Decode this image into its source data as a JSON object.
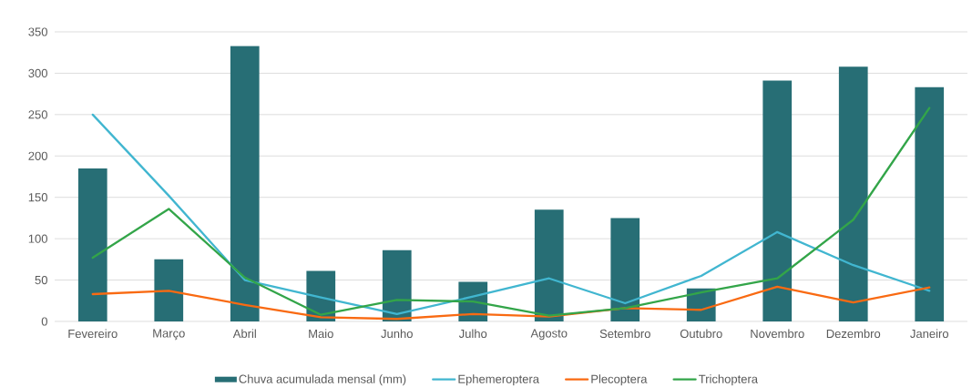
{
  "chart_data": {
    "type": "bar",
    "categories": [
      "Fevereiro",
      "Março",
      "Abril",
      "Maio",
      "Junho",
      "Julho",
      "Agosto",
      "Setembro",
      "Outubro",
      "Novembro",
      "Dezembro",
      "Janeiro"
    ],
    "series": [
      {
        "name": "Chuva acumulada mensal (mm)",
        "color": "#276e75",
        "values": [
          185,
          75,
          333,
          61,
          86,
          48,
          135,
          125,
          40,
          291,
          308,
          283
        ]
      },
      {
        "name": "Ephemeroptera",
        "type": "line",
        "color": "#41b6d0",
        "values": [
          250,
          152,
          50,
          29,
          9,
          30,
          52,
          22,
          55,
          108,
          68,
          37
        ]
      },
      {
        "name": "Plecoptera",
        "type": "line",
        "color": "#f96a12",
        "values": [
          33,
          37,
          20,
          5,
          3,
          9,
          6,
          16,
          14,
          42,
          23,
          41
        ]
      },
      {
        "name": "Trichoptera",
        "type": "line",
        "color": "#33a549",
        "values": [
          77,
          136,
          53,
          8,
          26,
          24,
          7,
          16,
          35,
          52,
          123,
          258
        ]
      }
    ],
    "ylim": [
      0,
      350
    ],
    "yticks": [
      0,
      50,
      100,
      150,
      200,
      250,
      300,
      350
    ],
    "grid": "y",
    "legend": "bottom"
  }
}
